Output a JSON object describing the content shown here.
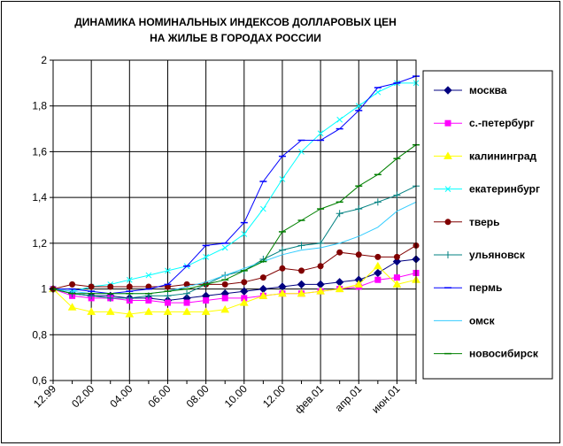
{
  "chart_data": {
    "type": "line",
    "title_lines": [
      "ДИНАМИКА НОМИНАЛЬНЫХ ИНДЕКСОВ ДОЛЛАРОВЫХ ЦЕН",
      "НА ЖИЛЬЕ В ГОРОДАХ РОССИИ"
    ],
    "x_tick_labels": [
      "12.99",
      "02.00",
      "04.00",
      "06.00",
      "08.00",
      "10.00",
      "12.00",
      "фев.01",
      "апр.01",
      "июн.01"
    ],
    "y_tick_labels": [
      "0,6",
      "0,8",
      "1",
      "1,2",
      "1,4",
      "1,6",
      "1,8",
      "2"
    ],
    "ylim": [
      0.6,
      2.0
    ],
    "y_step": 0.2,
    "n_points": 20,
    "grid": "vertical-and-horizontal",
    "legend_position": "right",
    "colors": {
      "plot_bg": "#ffffff",
      "grid": "#000000",
      "border": "#000000"
    },
    "series": [
      {
        "name": "москва",
        "color": "#000080",
        "marker": "diamond",
        "values": [
          1.0,
          0.98,
          0.97,
          0.97,
          0.96,
          0.96,
          0.95,
          0.96,
          0.97,
          0.98,
          0.99,
          1.0,
          1.01,
          1.02,
          1.02,
          1.03,
          1.04,
          1.07,
          1.12,
          1.13
        ]
      },
      {
        "name": "с.-петербург",
        "color": "#ff00ff",
        "marker": "square",
        "values": [
          1.0,
          0.97,
          0.96,
          0.96,
          0.95,
          0.95,
          0.94,
          0.94,
          0.95,
          0.96,
          0.96,
          0.97,
          0.98,
          0.98,
          0.99,
          1.0,
          1.01,
          1.04,
          1.05,
          1.07
        ]
      },
      {
        "name": "калининград",
        "color": "#ffff00",
        "marker": "triangle",
        "values": [
          1.0,
          0.92,
          0.9,
          0.9,
          0.89,
          0.9,
          0.9,
          0.9,
          0.9,
          0.91,
          0.94,
          0.97,
          0.98,
          0.98,
          0.99,
          1.0,
          1.02,
          1.1,
          1.02,
          1.04
        ]
      },
      {
        "name": "екатеринбург",
        "color": "#00ffff",
        "marker": "x",
        "values": [
          1.0,
          0.99,
          1.01,
          1.02,
          1.04,
          1.06,
          1.08,
          1.1,
          1.14,
          1.18,
          1.24,
          1.35,
          1.48,
          1.6,
          1.68,
          1.74,
          1.8,
          1.86,
          1.9,
          1.9
        ]
      },
      {
        "name": "тверь",
        "color": "#800000",
        "marker": "circle",
        "values": [
          1.0,
          1.02,
          1.01,
          1.01,
          1.01,
          1.01,
          1.01,
          1.02,
          1.02,
          1.02,
          1.03,
          1.05,
          1.09,
          1.08,
          1.1,
          1.16,
          1.15,
          1.14,
          1.14,
          1.19
        ]
      },
      {
        "name": "ульяновск",
        "color": "#008080",
        "marker": "plus",
        "values": [
          1.0,
          0.98,
          0.97,
          0.96,
          0.96,
          0.97,
          0.97,
          0.98,
          1.02,
          1.06,
          1.08,
          1.13,
          1.17,
          1.19,
          1.2,
          1.33,
          1.35,
          1.38,
          1.41,
          1.45
        ]
      },
      {
        "name": "пермь",
        "color": "#0000ff",
        "marker": "dash",
        "values": [
          1.0,
          1.0,
          0.99,
          0.98,
          0.99,
          1.0,
          1.02,
          1.1,
          1.19,
          1.2,
          1.29,
          1.47,
          1.58,
          1.65,
          1.65,
          1.7,
          1.78,
          1.88,
          1.9,
          1.93
        ]
      },
      {
        "name": "омск",
        "color": "#33ccff",
        "marker": "none",
        "values": [
          1.0,
          0.99,
          0.98,
          0.98,
          0.98,
          0.98,
          0.99,
          1.01,
          1.03,
          1.06,
          1.09,
          1.12,
          1.15,
          1.17,
          1.18,
          1.2,
          1.23,
          1.27,
          1.34,
          1.38
        ]
      },
      {
        "name": "новосибирск",
        "color": "#008000",
        "marker": "dash",
        "values": [
          1.0,
          0.98,
          0.98,
          0.98,
          0.98,
          0.98,
          0.99,
          1.0,
          1.02,
          1.04,
          1.08,
          1.12,
          1.25,
          1.3,
          1.35,
          1.38,
          1.45,
          1.5,
          1.57,
          1.63
        ]
      }
    ]
  }
}
